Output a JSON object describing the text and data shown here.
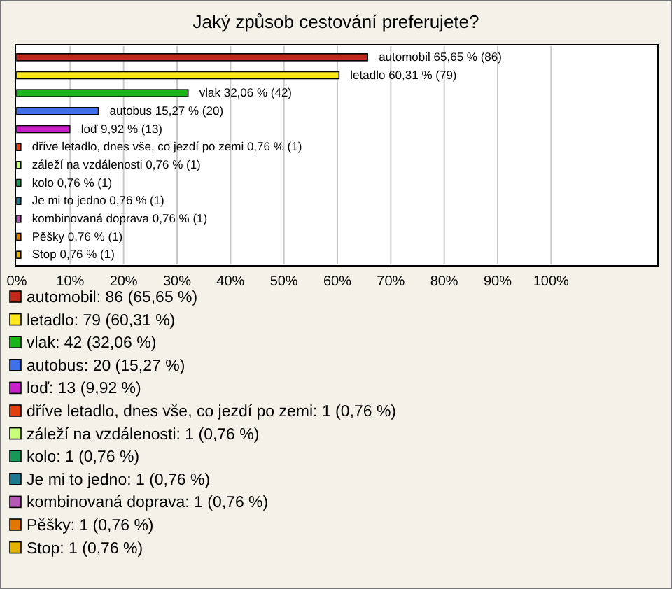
{
  "chart_data": {
    "type": "bar",
    "orientation": "horizontal",
    "title": "Jaký způsob cestování preferujete?",
    "categories": [
      "automobil",
      "letadlo",
      "vlak",
      "autobus",
      "loď",
      "dříve letadlo, dnes vše, co jezdí po zemi",
      "záleží na vzdálenosti",
      "kolo",
      "Je mi to jedno",
      "kombinovaná doprava",
      "Pěšky",
      "Stop"
    ],
    "values": [
      65.65,
      60.31,
      32.06,
      15.27,
      9.92,
      0.76,
      0.76,
      0.76,
      0.76,
      0.76,
      0.76,
      0.76
    ],
    "value_labels": [
      "65,65 % (86)",
      "60,31 % (79)",
      "32,06 % (42)",
      "15,27 % (20)",
      "9,92 % (13)",
      "0,76 % (1)",
      "0,76 % (1)",
      "0,76 % (1)",
      "0,76 % (1)",
      "0,76 % (1)",
      "0,76 % (1)",
      "0,76 % (1)"
    ],
    "colors": [
      "#c0281c",
      "#ffe81a",
      "#1cb41c",
      "#4070e8",
      "#c820c8",
      "#e04010",
      "#c8ff78",
      "#189858",
      "#1e7890",
      "#b45ab4",
      "#e07800",
      "#e6b400"
    ],
    "xlim": [
      0,
      120
    ],
    "xticks": [
      {
        "value": 0,
        "label": "0%"
      },
      {
        "value": 10,
        "label": "10%"
      },
      {
        "value": 20,
        "label": "20%"
      },
      {
        "value": 30,
        "label": "30%"
      },
      {
        "value": 40,
        "label": "40%"
      },
      {
        "value": 50,
        "label": "50%"
      },
      {
        "value": 60,
        "label": "60%"
      },
      {
        "value": 70,
        "label": "70%"
      },
      {
        "value": 80,
        "label": "80%"
      },
      {
        "value": 90,
        "label": "90%"
      },
      {
        "value": 100,
        "label": "100%"
      }
    ],
    "grid": "x",
    "annotations": [
      "automobil: 86 (65,65 %)",
      "letadlo: 79 (60,31 %)",
      "vlak: 42 (32,06 %)",
      "autobus: 20 (15,27 %)",
      "loď: 13 (9,92 %)",
      "dříve letadlo, dnes vše, co jezdí po zemi: 1 (0,76 %)",
      "záleží na vzdálenosti: 1 (0,76 %)",
      "kolo: 1 (0,76 %)",
      "Je mi to jedno: 1 (0,76 %)",
      "kombinovaná doprava: 1 (0,76 %)",
      "Pěšky: 1 (0,76 %)",
      "Stop: 1 (0,76 %)"
    ]
  }
}
